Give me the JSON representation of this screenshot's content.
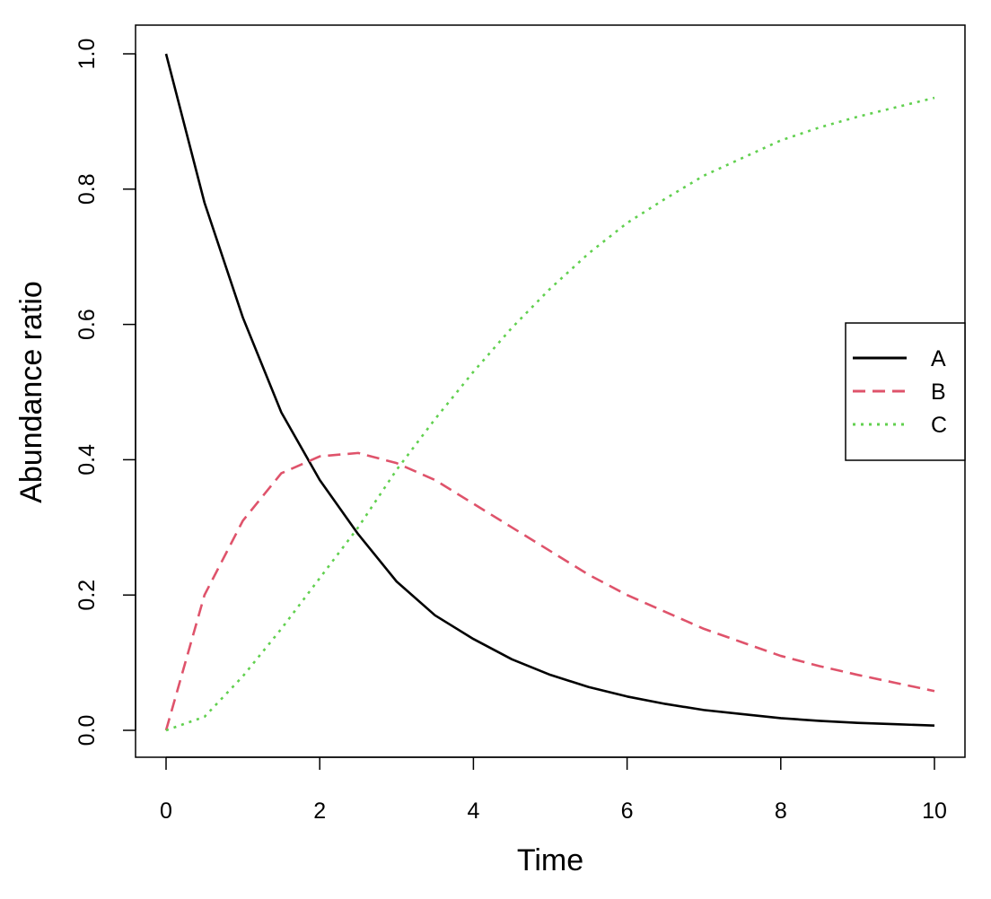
{
  "chart_data": {
    "type": "line",
    "title": "",
    "xlabel": "Time",
    "ylabel": "Abundance ratio",
    "xlim": [
      0,
      10
    ],
    "ylim": [
      0,
      1
    ],
    "xticks": [
      "0",
      "2",
      "4",
      "6",
      "8",
      "10"
    ],
    "yticks": [
      "0.0",
      "0.2",
      "0.4",
      "0.6",
      "0.8",
      "1.0"
    ],
    "grid": false,
    "legend_position": "right",
    "x": [
      0,
      0.5,
      1,
      1.5,
      2,
      2.5,
      3,
      3.5,
      4,
      4.5,
      5,
      5.5,
      6,
      6.5,
      7,
      7.5,
      8,
      8.5,
      9,
      9.5,
      10
    ],
    "series": [
      {
        "name": "A",
        "color": "#000000",
        "style": "solid",
        "values": [
          1.0,
          0.78,
          0.61,
          0.47,
          0.37,
          0.29,
          0.22,
          0.17,
          0.135,
          0.105,
          0.082,
          0.064,
          0.05,
          0.039,
          0.03,
          0.024,
          0.018,
          0.014,
          0.011,
          0.009,
          0.007
        ]
      },
      {
        "name": "B",
        "color": "#DF536B",
        "style": "dashed",
        "values": [
          0.0,
          0.2,
          0.31,
          0.38,
          0.405,
          0.41,
          0.395,
          0.37,
          0.335,
          0.3,
          0.265,
          0.23,
          0.2,
          0.175,
          0.15,
          0.13,
          0.11,
          0.095,
          0.082,
          0.07,
          0.058
        ]
      },
      {
        "name": "C",
        "color": "#61D04F",
        "style": "dotted",
        "values": [
          0.0,
          0.02,
          0.08,
          0.15,
          0.225,
          0.3,
          0.385,
          0.46,
          0.53,
          0.595,
          0.653,
          0.705,
          0.75,
          0.786,
          0.82,
          0.846,
          0.872,
          0.891,
          0.907,
          0.921,
          0.935
        ]
      }
    ]
  }
}
